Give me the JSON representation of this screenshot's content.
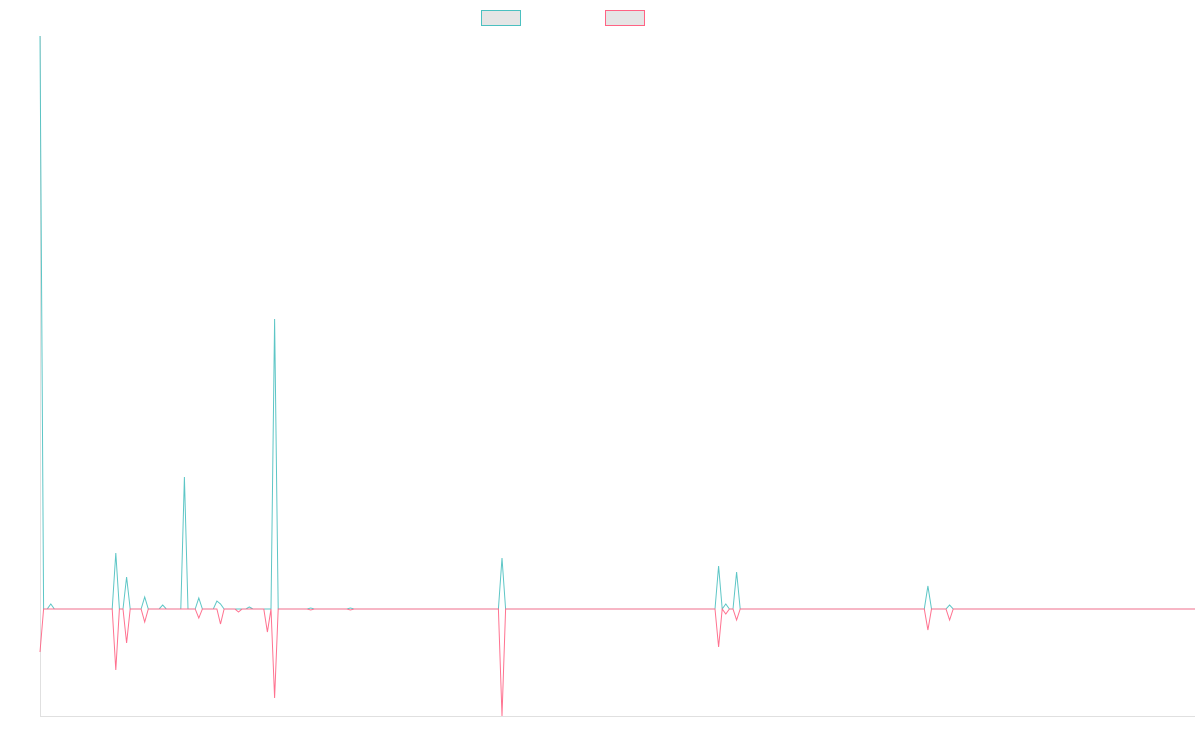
{
  "chart_data": {
    "type": "line",
    "title": "",
    "xlabel": "",
    "ylabel": "",
    "x_range": [
      0,
      320
    ],
    "ylim": [
      -107,
      573
    ],
    "grid": false,
    "legend_placement": "top",
    "series": [
      {
        "color": "#4bc0c0",
        "default_value": 0,
        "points": [
          {
            "x": 0,
            "y": 573
          },
          {
            "x": 3,
            "y": 5
          },
          {
            "x": 21,
            "y": 56
          },
          {
            "x": 24,
            "y": 32
          },
          {
            "x": 29,
            "y": 12
          },
          {
            "x": 34,
            "y": 4
          },
          {
            "x": 40,
            "y": 132
          },
          {
            "x": 44,
            "y": 11
          },
          {
            "x": 49,
            "y": 8
          },
          {
            "x": 50,
            "y": 5
          },
          {
            "x": 58,
            "y": 2
          },
          {
            "x": 65,
            "y": 290
          },
          {
            "x": 75,
            "y": 1
          },
          {
            "x": 86,
            "y": 1
          },
          {
            "x": 128,
            "y": 51
          },
          {
            "x": 188,
            "y": 43
          },
          {
            "x": 190,
            "y": 5
          },
          {
            "x": 193,
            "y": 37
          },
          {
            "x": 246,
            "y": 23
          },
          {
            "x": 252,
            "y": 4
          }
        ]
      },
      {
        "color": "#ff6384",
        "default_value": 0,
        "points": [
          {
            "x": 0,
            "y": -43
          },
          {
            "x": 21,
            "y": -61
          },
          {
            "x": 24,
            "y": -34
          },
          {
            "x": 29,
            "y": -13
          },
          {
            "x": 44,
            "y": -9
          },
          {
            "x": 50,
            "y": -15
          },
          {
            "x": 55,
            "y": -3
          },
          {
            "x": 63,
            "y": -23
          },
          {
            "x": 65,
            "y": -89
          },
          {
            "x": 75,
            "y": -1
          },
          {
            "x": 86,
            "y": -1
          },
          {
            "x": 128,
            "y": -107
          },
          {
            "x": 188,
            "y": -38
          },
          {
            "x": 190,
            "y": -5
          },
          {
            "x": 193,
            "y": -11
          },
          {
            "x": 246,
            "y": -21
          },
          {
            "x": 252,
            "y": -11
          }
        ]
      }
    ]
  }
}
